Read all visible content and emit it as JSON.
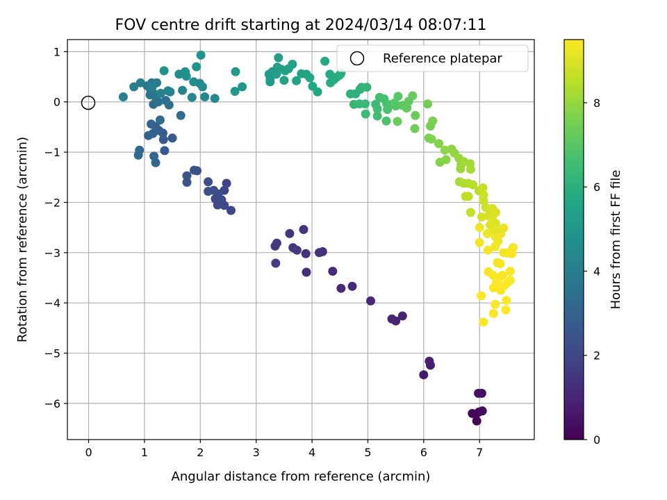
{
  "chart_data": {
    "type": "scatter",
    "title": "FOV centre drift starting at 2024/03/14 08:07:11",
    "xlabel": "Angular distance from reference (arcmin)",
    "ylabel": "Rotation from reference (arcmin)",
    "xlim": [
      -0.38,
      7.98
    ],
    "ylim": [
      -6.72,
      1.24
    ],
    "xticks": [
      0,
      1,
      2,
      3,
      4,
      5,
      6,
      7
    ],
    "yticks": [
      1,
      0,
      -1,
      -2,
      -3,
      -4,
      -5,
      -6
    ],
    "xtick_labels": [
      "0",
      "1",
      "2",
      "3",
      "4",
      "5",
      "6",
      "7"
    ],
    "ytick_labels": [
      "1",
      "0",
      "−1",
      "−2",
      "−3",
      "−4",
      "−5",
      "−6"
    ],
    "grid": true,
    "legend": {
      "position": "top-right",
      "entries": [
        {
          "label": "Reference platepar",
          "marker": "open-circle",
          "x": 0,
          "y": 0
        }
      ]
    },
    "colorbar": {
      "label": "Hours from first FF file",
      "range": [
        0,
        9.5
      ],
      "ticks": [
        0,
        2,
        4,
        6,
        8
      ],
      "tick_labels": [
        "0",
        "2",
        "4",
        "6",
        "8"
      ],
      "colormap": "viridis"
    },
    "points": [
      [
        6.95,
        -6.35,
        0.1
      ],
      [
        6.93,
        -6.22,
        0.15
      ],
      [
        6.87,
        -6.2,
        0.2
      ],
      [
        6.99,
        -6.17,
        0.25
      ],
      [
        7.05,
        -6.15,
        0.3
      ],
      [
        7.04,
        -5.8,
        0.38
      ],
      [
        6.98,
        -5.8,
        0.42
      ],
      [
        6.0,
        -5.43,
        0.7
      ],
      [
        6.12,
        -5.24,
        0.75
      ],
      [
        6.1,
        -5.16,
        0.8
      ],
      [
        5.62,
        -4.26,
        0.9
      ],
      [
        5.5,
        -4.36,
        0.95
      ],
      [
        5.43,
        -4.32,
        1.0
      ],
      [
        5.05,
        -3.96,
        1.05
      ],
      [
        4.72,
        -3.67,
        1.1
      ],
      [
        4.52,
        -3.71,
        1.15
      ],
      [
        4.37,
        -3.37,
        1.2
      ],
      [
        3.9,
        -3.39,
        1.25
      ],
      [
        3.89,
        -3.02,
        1.3
      ],
      [
        4.19,
        -2.98,
        1.35
      ],
      [
        4.13,
        -3.0,
        1.38
      ],
      [
        3.85,
        -2.54,
        1.42
      ],
      [
        3.6,
        -2.62,
        1.45
      ],
      [
        3.66,
        -2.9,
        1.5
      ],
      [
        3.73,
        -2.95,
        1.55
      ],
      [
        3.34,
        -2.87,
        1.6
      ],
      [
        3.37,
        -2.81,
        1.63
      ],
      [
        3.35,
        -3.21,
        1.66
      ],
      [
        2.55,
        -2.16,
        1.9
      ],
      [
        2.47,
        -1.62,
        1.95
      ],
      [
        2.43,
        -1.76,
        2.0
      ],
      [
        2.43,
        -2.06,
        2.05
      ],
      [
        2.38,
        -1.95,
        2.1
      ],
      [
        2.31,
        -2.05,
        2.13
      ],
      [
        2.27,
        -1.93,
        2.16
      ],
      [
        2.32,
        -1.83,
        2.2
      ],
      [
        2.24,
        -1.76,
        2.24
      ],
      [
        2.14,
        -1.59,
        2.28
      ],
      [
        2.14,
        -1.78,
        2.32
      ],
      [
        1.94,
        -1.37,
        2.36
      ],
      [
        1.89,
        -1.36,
        2.4
      ],
      [
        1.76,
        -1.47,
        2.44
      ],
      [
        1.76,
        -1.6,
        2.48
      ],
      [
        1.5,
        -0.72,
        2.65
      ],
      [
        1.36,
        -0.97,
        2.7
      ],
      [
        1.34,
        -0.75,
        2.75
      ],
      [
        1.33,
        -0.62,
        2.8
      ],
      [
        1.26,
        -0.57,
        2.85
      ],
      [
        1.2,
        -0.49,
        2.9
      ],
      [
        1.12,
        -0.44,
        2.95
      ],
      [
        1.15,
        -0.63,
        3.0
      ],
      [
        1.07,
        -0.67,
        3.05
      ],
      [
        1.17,
        -1.08,
        3.1
      ],
      [
        1.2,
        -1.21,
        3.15
      ],
      [
        0.91,
        -0.96,
        3.2
      ],
      [
        0.89,
        -1.06,
        3.25
      ],
      [
        1.28,
        -0.36,
        3.3
      ],
      [
        1.65,
        -0.27,
        3.35
      ],
      [
        1.16,
        -0.05,
        3.4
      ],
      [
        1.44,
        -0.06,
        3.45
      ],
      [
        1.25,
        0.0,
        3.5
      ],
      [
        1.38,
        0.03,
        3.55
      ],
      [
        1.19,
        0.11,
        3.6
      ],
      [
        1.1,
        0.14,
        3.65
      ],
      [
        1.15,
        0.18,
        3.7
      ],
      [
        1.11,
        0.24,
        3.75
      ],
      [
        1.05,
        0.32,
        3.8
      ],
      [
        1.13,
        0.38,
        3.85
      ],
      [
        1.22,
        0.38,
        3.9
      ],
      [
        0.93,
        0.38,
        3.95
      ],
      [
        0.81,
        0.3,
        4.0
      ],
      [
        0.62,
        0.1,
        4.05
      ],
      [
        1.14,
        0.3,
        4.1
      ],
      [
        1.29,
        0.17,
        4.15
      ],
      [
        1.46,
        0.2,
        4.2
      ],
      [
        1.42,
        0.22,
        4.25
      ],
      [
        1.68,
        0.23,
        4.3
      ],
      [
        1.85,
        0.09,
        4.35
      ],
      [
        2.08,
        0.1,
        4.4
      ],
      [
        2.26,
        0.07,
        4.45
      ],
      [
        2.04,
        0.3,
        4.5
      ],
      [
        1.99,
        0.37,
        4.55
      ],
      [
        1.88,
        0.4,
        4.6
      ],
      [
        1.62,
        0.55,
        4.65
      ],
      [
        1.75,
        0.51,
        4.7
      ],
      [
        1.73,
        0.6,
        4.75
      ],
      [
        1.35,
        0.62,
        4.8
      ],
      [
        1.93,
        0.7,
        4.85
      ],
      [
        2.01,
        0.93,
        4.9
      ],
      [
        2.75,
        0.3,
        4.95
      ],
      [
        2.62,
        0.21,
        5.0
      ],
      [
        2.63,
        0.6,
        5.05
      ],
      [
        3.25,
        0.4,
        5.1
      ],
      [
        3.25,
        0.45,
        5.13
      ],
      [
        3.29,
        0.6,
        5.16
      ],
      [
        3.23,
        0.55,
        5.2
      ],
      [
        3.36,
        0.55,
        5.23
      ],
      [
        3.38,
        0.69,
        5.26
      ],
      [
        3.4,
        0.88,
        5.3
      ],
      [
        3.45,
        0.65,
        5.33
      ],
      [
        3.52,
        0.62,
        5.36
      ],
      [
        3.58,
        0.66,
        5.4
      ],
      [
        3.65,
        0.75,
        5.43
      ],
      [
        3.5,
        0.43,
        5.46
      ],
      [
        3.72,
        0.42,
        5.5
      ],
      [
        3.81,
        0.56,
        5.53
      ],
      [
        3.9,
        0.55,
        5.56
      ],
      [
        3.96,
        0.48,
        5.6
      ],
      [
        4.01,
        0.31,
        5.63
      ],
      [
        4.1,
        0.2,
        5.66
      ],
      [
        4.23,
        0.81,
        5.7
      ],
      [
        4.32,
        0.55,
        5.73
      ],
      [
        4.39,
        0.44,
        5.76
      ],
      [
        4.44,
        0.49,
        5.8
      ],
      [
        4.49,
        0.53,
        5.83
      ],
      [
        4.33,
        0.38,
        5.86
      ],
      [
        4.51,
        0.55,
        5.9
      ],
      [
        4.52,
        0.58,
        5.93
      ],
      [
        4.69,
        0.16,
        6.0
      ],
      [
        4.78,
        0.16,
        6.05
      ],
      [
        4.86,
        0.25,
        6.1
      ],
      [
        4.89,
        0.29,
        6.15
      ],
      [
        4.98,
        0.29,
        6.2
      ],
      [
        4.75,
        -0.05,
        6.25
      ],
      [
        4.85,
        -0.04,
        6.3
      ],
      [
        4.95,
        -0.04,
        6.35
      ],
      [
        4.96,
        -0.24,
        6.4
      ],
      [
        5.14,
        -0.05,
        6.45
      ],
      [
        5.17,
        -0.14,
        6.5
      ],
      [
        5.17,
        -0.28,
        6.55
      ],
      [
        5.21,
        0.09,
        6.6
      ],
      [
        5.29,
        0.06,
        6.65
      ],
      [
        5.34,
        -0.04,
        6.7
      ],
      [
        5.35,
        -0.15,
        6.75
      ],
      [
        5.33,
        -0.38,
        6.8
      ],
      [
        5.43,
        -0.05,
        6.85
      ],
      [
        5.5,
        -0.08,
        6.9
      ],
      [
        5.48,
        -0.02,
        6.95
      ],
      [
        5.54,
        0.11,
        7.0
      ],
      [
        5.62,
        -0.07,
        7.05
      ],
      [
        5.69,
        -0.12,
        7.1
      ],
      [
        5.73,
        0.01,
        7.15
      ],
      [
        5.7,
        -0.12,
        7.2
      ],
      [
        5.8,
        0.12,
        7.25
      ],
      [
        5.53,
        -0.39,
        7.3
      ],
      [
        5.85,
        -0.27,
        7.35
      ],
      [
        5.84,
        -0.53,
        7.4
      ],
      [
        6.07,
        -0.04,
        7.45
      ],
      [
        6.12,
        -0.48,
        7.5
      ],
      [
        6.16,
        -0.38,
        7.55
      ],
      [
        6.09,
        -0.72,
        7.6
      ],
      [
        6.14,
        -0.74,
        7.65
      ],
      [
        6.27,
        -0.83,
        7.7
      ],
      [
        6.29,
        -1.2,
        7.75
      ],
      [
        6.4,
        -1.15,
        7.8
      ],
      [
        6.38,
        -0.96,
        7.85
      ],
      [
        6.5,
        -0.94,
        7.9
      ],
      [
        6.55,
        -1.02,
        7.95
      ],
      [
        6.63,
        -1.12,
        8.0
      ],
      [
        6.67,
        -1.25,
        8.05
      ],
      [
        6.66,
        -1.33,
        8.1
      ],
      [
        6.72,
        -1.19,
        8.15
      ],
      [
        6.83,
        -1.23,
        8.2
      ],
      [
        6.84,
        -1.34,
        8.25
      ],
      [
        6.64,
        -1.59,
        8.3
      ],
      [
        6.72,
        -1.62,
        8.35
      ],
      [
        6.8,
        -1.62,
        8.4
      ],
      [
        6.88,
        -1.65,
        8.45
      ],
      [
        6.99,
        -1.77,
        8.5
      ],
      [
        6.75,
        -1.88,
        8.55
      ],
      [
        6.8,
        -1.88,
        8.6
      ],
      [
        6.84,
        -2.2,
        8.65
      ],
      [
        7.06,
        -1.71,
        8.7
      ],
      [
        7.07,
        -1.85,
        8.73
      ],
      [
        7.07,
        -1.96,
        8.76
      ],
      [
        7.11,
        -2.1,
        8.8
      ],
      [
        7.04,
        -2.29,
        8.83
      ],
      [
        7.18,
        -2.15,
        8.86
      ],
      [
        7.23,
        -2.12,
        8.9
      ],
      [
        7.16,
        -2.27,
        8.93
      ],
      [
        7.29,
        -2.2,
        8.96
      ],
      [
        7.23,
        -2.33,
        9.0
      ],
      [
        7.19,
        -2.45,
        9.03
      ],
      [
        7.29,
        -2.42,
        9.06
      ],
      [
        7.35,
        -2.58,
        9.1
      ],
      [
        7.25,
        -2.55,
        9.13
      ],
      [
        7.43,
        -2.51,
        9.16
      ],
      [
        7.38,
        -2.62,
        9.2
      ],
      [
        7.14,
        -2.62,
        9.23
      ],
      [
        7.29,
        -2.69,
        9.26
      ],
      [
        7.33,
        -2.77,
        9.28
      ],
      [
        7.0,
        -2.5,
        9.3
      ],
      [
        7.0,
        -2.8,
        9.32
      ],
      [
        7.15,
        -2.95,
        9.33
      ],
      [
        7.28,
        -2.88,
        9.34
      ],
      [
        7.32,
        -3.2,
        9.35
      ],
      [
        7.37,
        -3.22,
        9.36
      ],
      [
        7.43,
        -3.0,
        9.37
      ],
      [
        7.5,
        -3.01,
        9.38
      ],
      [
        7.55,
        -2.99,
        9.39
      ],
      [
        7.58,
        -3.02,
        9.4
      ],
      [
        7.6,
        -2.9,
        9.41
      ],
      [
        7.16,
        -3.38,
        9.42
      ],
      [
        7.24,
        -3.45,
        9.43
      ],
      [
        7.35,
        -3.5,
        9.44
      ],
      [
        7.41,
        -3.45,
        9.44
      ],
      [
        7.55,
        -3.37,
        9.45
      ],
      [
        7.5,
        -3.6,
        9.45
      ],
      [
        7.55,
        -3.55,
        9.46
      ],
      [
        7.3,
        -3.6,
        9.46
      ],
      [
        7.25,
        -3.7,
        9.47
      ],
      [
        7.38,
        -3.75,
        9.47
      ],
      [
        7.45,
        -3.65,
        9.48
      ],
      [
        7.48,
        -3.95,
        9.48
      ],
      [
        7.28,
        -4.03,
        9.49
      ],
      [
        7.25,
        -4.21,
        9.49
      ],
      [
        7.47,
        -4.14,
        9.5
      ],
      [
        7.03,
        -3.86,
        9.5
      ],
      [
        7.07,
        -4.38,
        9.5
      ]
    ]
  }
}
